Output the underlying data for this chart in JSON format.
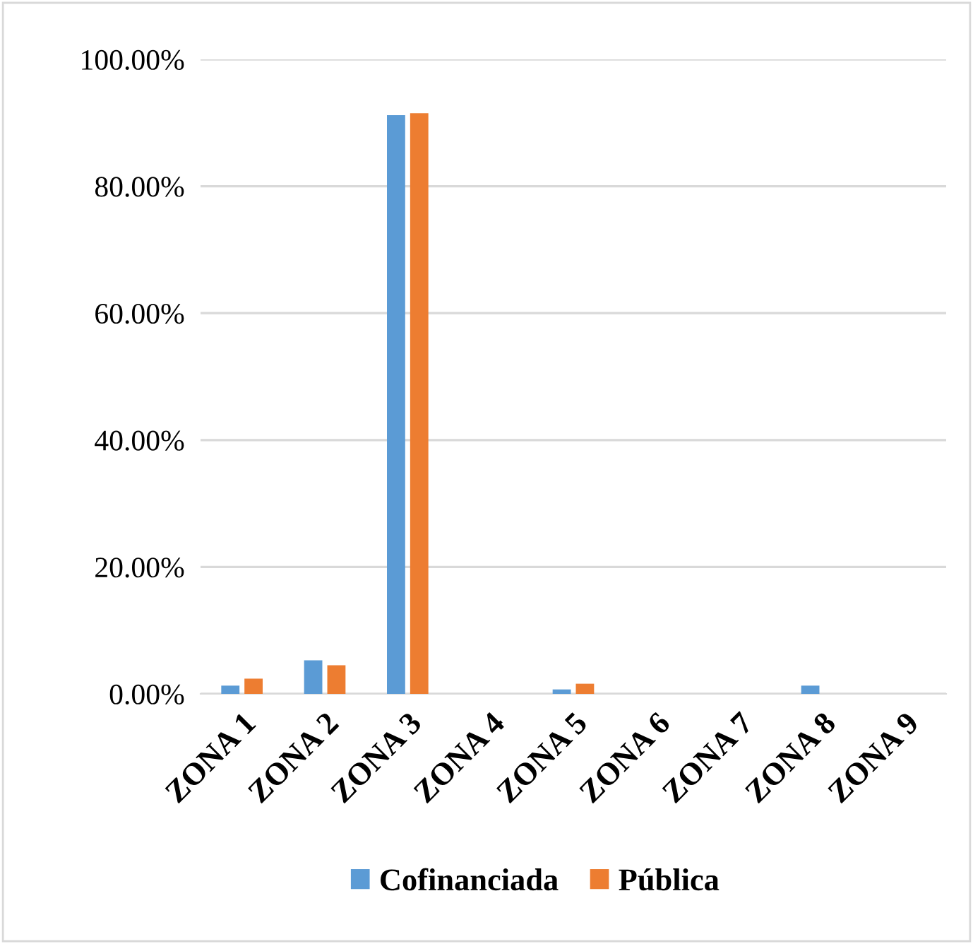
{
  "chart_data": {
    "type": "bar",
    "categories": [
      "ZONA 1",
      "ZONA 2",
      "ZONA 3",
      "ZONA 4",
      "ZONA 5",
      "ZONA 6",
      "ZONA 7",
      "ZONA 8",
      "ZONA 9"
    ],
    "series": [
      {
        "name": "Cofinanciada",
        "color": "#5b9bd5",
        "values": [
          1.3,
          5.3,
          91.2,
          0,
          0.7,
          0,
          0,
          1.3,
          0
        ]
      },
      {
        "name": "Pública",
        "color": "#ed7d31",
        "values": [
          2.4,
          4.5,
          91.5,
          0,
          1.6,
          0,
          0,
          0,
          0
        ]
      }
    ],
    "ylim": [
      0,
      100
    ],
    "yticks": [
      {
        "value": 0,
        "label": "0.00%"
      },
      {
        "value": 20,
        "label": "20.00%"
      },
      {
        "value": 40,
        "label": "40.00%"
      },
      {
        "value": 60,
        "label": "60.00%"
      },
      {
        "value": 80,
        "label": "80.00%"
      },
      {
        "value": 100,
        "label": "100.00%"
      }
    ],
    "grid": "y",
    "legend": "bottom"
  }
}
